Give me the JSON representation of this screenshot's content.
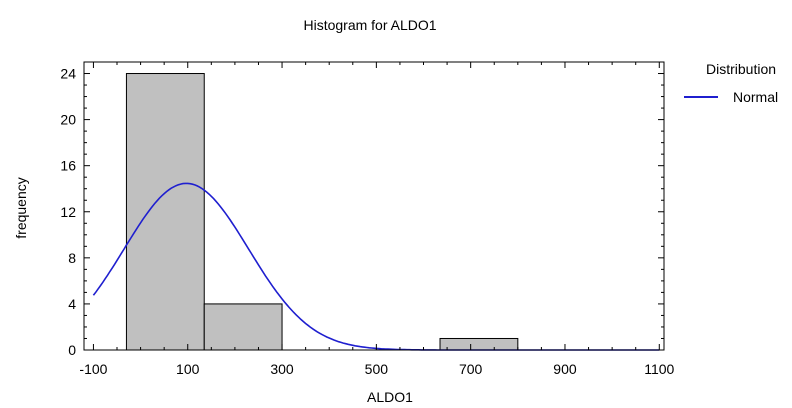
{
  "chart_data": {
    "type": "bar",
    "title": "Histogram for ALDO1",
    "xlabel": "ALDO1",
    "ylabel": "frequency",
    "xlim": [
      -120,
      1110
    ],
    "ylim": [
      0,
      25
    ],
    "x_ticks": [
      -100,
      100,
      300,
      500,
      700,
      900,
      1100
    ],
    "y_ticks": [
      0,
      4,
      8,
      12,
      16,
      20,
      24
    ],
    "bins": [
      {
        "from": -30,
        "to": 135,
        "count": 24
      },
      {
        "from": 135,
        "to": 300,
        "count": 4
      },
      {
        "from": 300,
        "to": 465,
        "count": 0
      },
      {
        "from": 465,
        "to": 635,
        "count": 0
      },
      {
        "from": 635,
        "to": 800,
        "count": 1
      }
    ],
    "bar_color": "#c0c0c0",
    "legend": {
      "title": "Distribution",
      "placement": "right",
      "entries": [
        {
          "label": "Normal",
          "color": "#1f1fcf"
        }
      ]
    },
    "fitted_curve": {
      "name": "Normal",
      "mean": 97,
      "sd": 132,
      "n": 29,
      "bin_width": 165
    },
    "grid": false
  }
}
